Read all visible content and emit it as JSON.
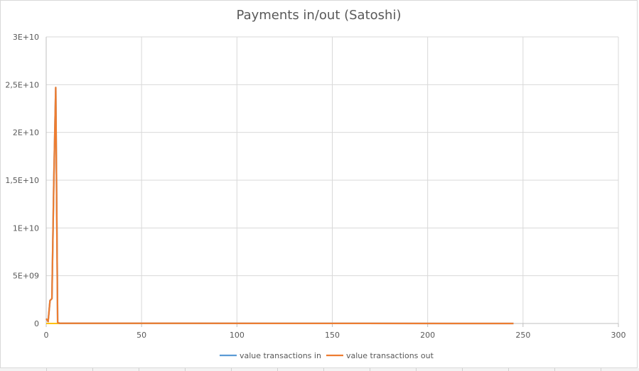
{
  "chart_data": {
    "type": "line",
    "title": "Payments in/out (Satoshi)",
    "xlabel": "",
    "ylabel": "",
    "xlim": [
      0,
      300
    ],
    "ylim": [
      0,
      30000000000
    ],
    "x_ticks": [
      0,
      50,
      100,
      150,
      200,
      250,
      300
    ],
    "x_tick_labels": [
      "0",
      "50",
      "100",
      "150",
      "200",
      "250",
      "300"
    ],
    "y_ticks": [
      0,
      5000000000,
      10000000000,
      15000000000,
      20000000000,
      25000000000,
      30000000000
    ],
    "y_tick_labels": [
      "0",
      "5E+09",
      "1E+10",
      "1,5E+10",
      "2E+10",
      "2,5E+10",
      "3E+10"
    ],
    "grid": true,
    "legend_position": "bottom",
    "series": [
      {
        "name": "value transactions in",
        "color": "#5b9bd5",
        "x": [
          0,
          1,
          2,
          3,
          4,
          5,
          6,
          7,
          245
        ],
        "y": [
          500000000,
          200000000,
          2400000000,
          2600000000,
          15000000000,
          24700000000,
          100000000,
          20000000,
          0
        ]
      },
      {
        "name": "value transactions out",
        "color": "#ed7d31",
        "x": [
          0,
          1,
          2,
          3,
          4,
          5,
          6,
          7,
          245
        ],
        "y": [
          500000000,
          200000000,
          2400000000,
          2600000000,
          15000000000,
          24700000000,
          100000000,
          20000000,
          0
        ]
      }
    ],
    "extra_line": {
      "color": "#ffc000",
      "x": [
        0,
        245
      ],
      "y": [
        0,
        0
      ]
    }
  }
}
